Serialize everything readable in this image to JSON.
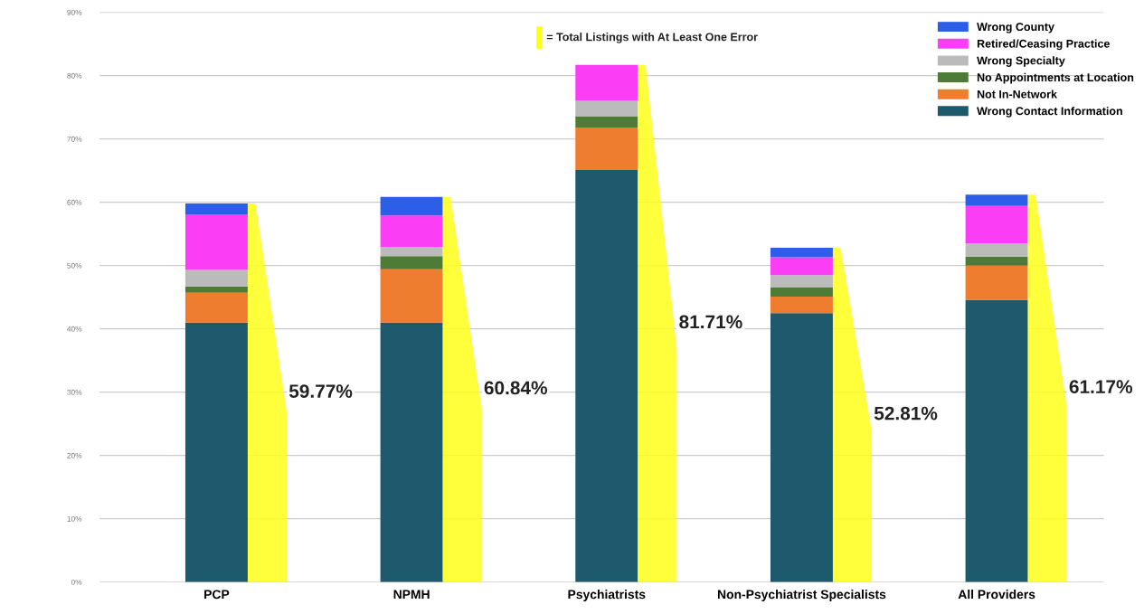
{
  "chart_data": {
    "type": "bar",
    "stacked": true,
    "categories": [
      "PCP",
      "NPMH",
      "Psychiatrists",
      "Non-Psychiatrist Specialists",
      "All Providers"
    ],
    "series": [
      {
        "name": "Wrong Contact Information",
        "color": "#1d5a6e",
        "values": [
          41.0,
          41.0,
          65.1,
          42.5,
          44.6
        ]
      },
      {
        "name": "Not In-Network",
        "color": "#ef7d2f",
        "values": [
          4.7,
          8.4,
          6.7,
          2.6,
          5.4
        ]
      },
      {
        "name": "No Appointments at Location",
        "color": "#4e7b35",
        "values": [
          1.0,
          2.1,
          1.8,
          1.5,
          1.4
        ]
      },
      {
        "name": "Wrong Specialty",
        "color": "#bbbbbb",
        "values": [
          2.6,
          1.4,
          2.4,
          1.9,
          2.1
        ]
      },
      {
        "name": "Retired/Ceasing Practice",
        "color": "#fb3ef6",
        "values": [
          8.8,
          5.0,
          5.7,
          2.8,
          5.9
        ]
      },
      {
        "name": "Wrong County",
        "color": "#2d5ee8",
        "values": [
          1.7,
          2.94,
          0,
          1.5,
          1.8
        ]
      }
    ],
    "totals": [
      "59.77%",
      "60.84%",
      "81.71%",
      "52.81%",
      "61.17%"
    ],
    "annotations": [
      "= Total Listings with At Least One Error"
    ],
    "ylim": [
      0,
      90
    ],
    "yticks": [
      {
        "value": 0,
        "label": "0%"
      },
      {
        "value": 10,
        "label": "10%"
      },
      {
        "value": 20,
        "label": "20%"
      },
      {
        "value": 30,
        "label": "30%"
      },
      {
        "value": 40,
        "label": "40%"
      },
      {
        "value": 50,
        "label": "50%"
      },
      {
        "value": 60,
        "label": "60%"
      },
      {
        "value": 70,
        "label": "70%"
      },
      {
        "value": 80,
        "label": "80%"
      },
      {
        "value": 90,
        "label": "90%"
      }
    ],
    "grid": "y",
    "legend": "top right"
  }
}
